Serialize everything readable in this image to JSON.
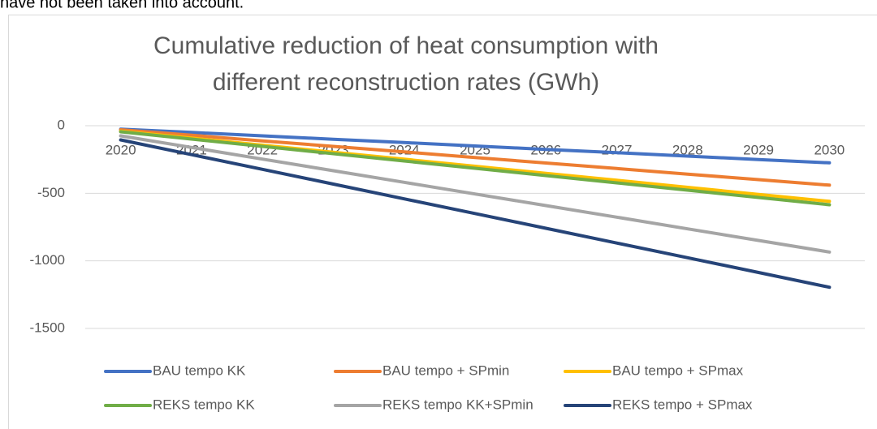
{
  "page_text": "have not been taken into account.",
  "chart_data": {
    "type": "line",
    "title": [
      "Cumulative reduction of heat consumption with",
      "different reconstruction rates (GWh)"
    ],
    "categories": [
      "2020",
      "2021",
      "2022",
      "2023",
      "2024",
      "2025",
      "2026",
      "2027",
      "2028",
      "2029",
      "2030"
    ],
    "series": [
      {
        "name": "BAU tempo KK",
        "color": "#4472c4",
        "values": [
          -25,
          -50,
          -75,
          -100,
          -125,
          -150,
          -175,
          -200,
          -225,
          -250,
          -275
        ]
      },
      {
        "name": "BAU tempo + SPmin",
        "color": "#ed7d31",
        "values": [
          -30,
          -71,
          -112,
          -153,
          -194,
          -235,
          -276,
          -317,
          -358,
          -399,
          -440
        ]
      },
      {
        "name": "BAU tempo + SPmax",
        "color": "#ffc000",
        "values": [
          -40,
          -92,
          -144,
          -196,
          -248,
          -300,
          -352,
          -404,
          -456,
          -508,
          -560
        ]
      },
      {
        "name": "REKS tempo KK",
        "color": "#70ad47",
        "values": [
          -45,
          -99,
          -153,
          -207,
          -261,
          -315,
          -369,
          -423,
          -477,
          -531,
          -585
        ]
      },
      {
        "name": "REKS tempo KK+SPmin",
        "color": "#a5a5a5",
        "values": [
          -75,
          -161,
          -247,
          -333,
          -419,
          -505,
          -591,
          -677,
          -763,
          -849,
          -935
        ]
      },
      {
        "name": "REKS tempo + SPmax",
        "color": "#264478",
        "values": [
          -105,
          -214,
          -323,
          -432,
          -541,
          -650,
          -759,
          -868,
          -977,
          -1086,
          -1195
        ]
      }
    ],
    "ylim": [
      -1500,
      0
    ],
    "yticks": [
      0,
      -500,
      -1000,
      -1500
    ],
    "grid": true,
    "legend": "bottom"
  }
}
